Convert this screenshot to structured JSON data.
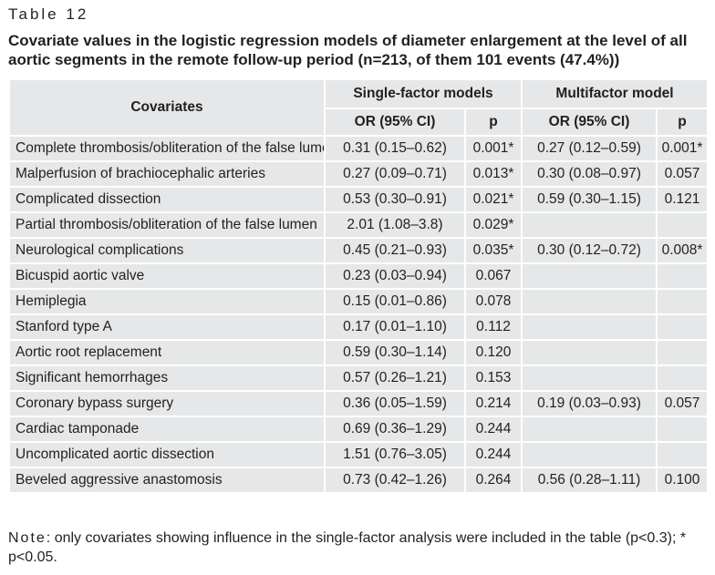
{
  "table_label": "Table 12",
  "title": "Covariate values in the logistic regression models of diameter enlargement at the level of all aortic segments in the remote follow-up period (n=213, of them 101 events (47.4%))",
  "header": {
    "covariates": "Covariates",
    "single_factor": "Single-factor models",
    "multifactor": "Multifactor model",
    "or_ci": "OR (95% CI)",
    "p": "p"
  },
  "rows": [
    {
      "covariate": "Complete thrombosis/obliteration of the false lumen",
      "sf_or": "0.31 (0.15–0.62)",
      "sf_p": "0.001*",
      "mf_or": "0.27 (0.12–0.59)",
      "mf_p": "0.001*"
    },
    {
      "covariate": "Malperfusion of brachiocephalic arteries",
      "sf_or": "0.27 (0.09–0.71)",
      "sf_p": "0.013*",
      "mf_or": "0.30 (0.08–0.97)",
      "mf_p": "0.057"
    },
    {
      "covariate": "Complicated dissection",
      "sf_or": "0.53 (0.30–0.91)",
      "sf_p": "0.021*",
      "mf_or": "0.59 (0.30–1.15)",
      "mf_p": "0.121"
    },
    {
      "covariate": "Partial thrombosis/obliteration of the false lumen",
      "sf_or": "2.01 (1.08–3.8)",
      "sf_p": "0.029*",
      "mf_or": "",
      "mf_p": ""
    },
    {
      "covariate": "Neurological complications",
      "sf_or": "0.45 (0.21–0.93)",
      "sf_p": "0.035*",
      "mf_or": "0.30 (0.12–0.72)",
      "mf_p": "0.008*"
    },
    {
      "covariate": "Bicuspid aortic valve",
      "sf_or": "0.23 (0.03–0.94)",
      "sf_p": "0.067",
      "mf_or": "",
      "mf_p": ""
    },
    {
      "covariate": "Hemiplegia",
      "sf_or": "0.15 (0.01–0.86)",
      "sf_p": "0.078",
      "mf_or": "",
      "mf_p": ""
    },
    {
      "covariate": "Stanford type A",
      "sf_or": "0.17 (0.01–1.10)",
      "sf_p": "0.112",
      "mf_or": "",
      "mf_p": ""
    },
    {
      "covariate": "Aortic root replacement",
      "sf_or": "0.59 (0.30–1.14)",
      "sf_p": "0.120",
      "mf_or": "",
      "mf_p": ""
    },
    {
      "covariate": "Significant hemorrhages",
      "sf_or": "0.57 (0.26–1.21)",
      "sf_p": "0.153",
      "mf_or": "",
      "mf_p": ""
    },
    {
      "covariate": "Coronary bypass surgery",
      "sf_or": "0.36 (0.05–1.59)",
      "sf_p": "0.214",
      "mf_or": "0.19 (0.03–0.93)",
      "mf_p": "0.057"
    },
    {
      "covariate": "Cardiac tamponade",
      "sf_or": "0.69 (0.36–1.29)",
      "sf_p": "0.244",
      "mf_or": "",
      "mf_p": ""
    },
    {
      "covariate": "Uncomplicated aortic dissection",
      "sf_or": "1.51 (0.76–3.05)",
      "sf_p": "0.244",
      "mf_or": "",
      "mf_p": ""
    },
    {
      "covariate": "Beveled aggressive anastomosis",
      "sf_or": "0.73 (0.42–1.26)",
      "sf_p": "0.264",
      "mf_or": "0.56 (0.28–1.11)",
      "mf_p": "0.100"
    }
  ],
  "note": {
    "lead": "Note",
    "text": ": only covariates showing influence in the single-factor analysis were included in the table (p<0.3); * p<0.05."
  }
}
